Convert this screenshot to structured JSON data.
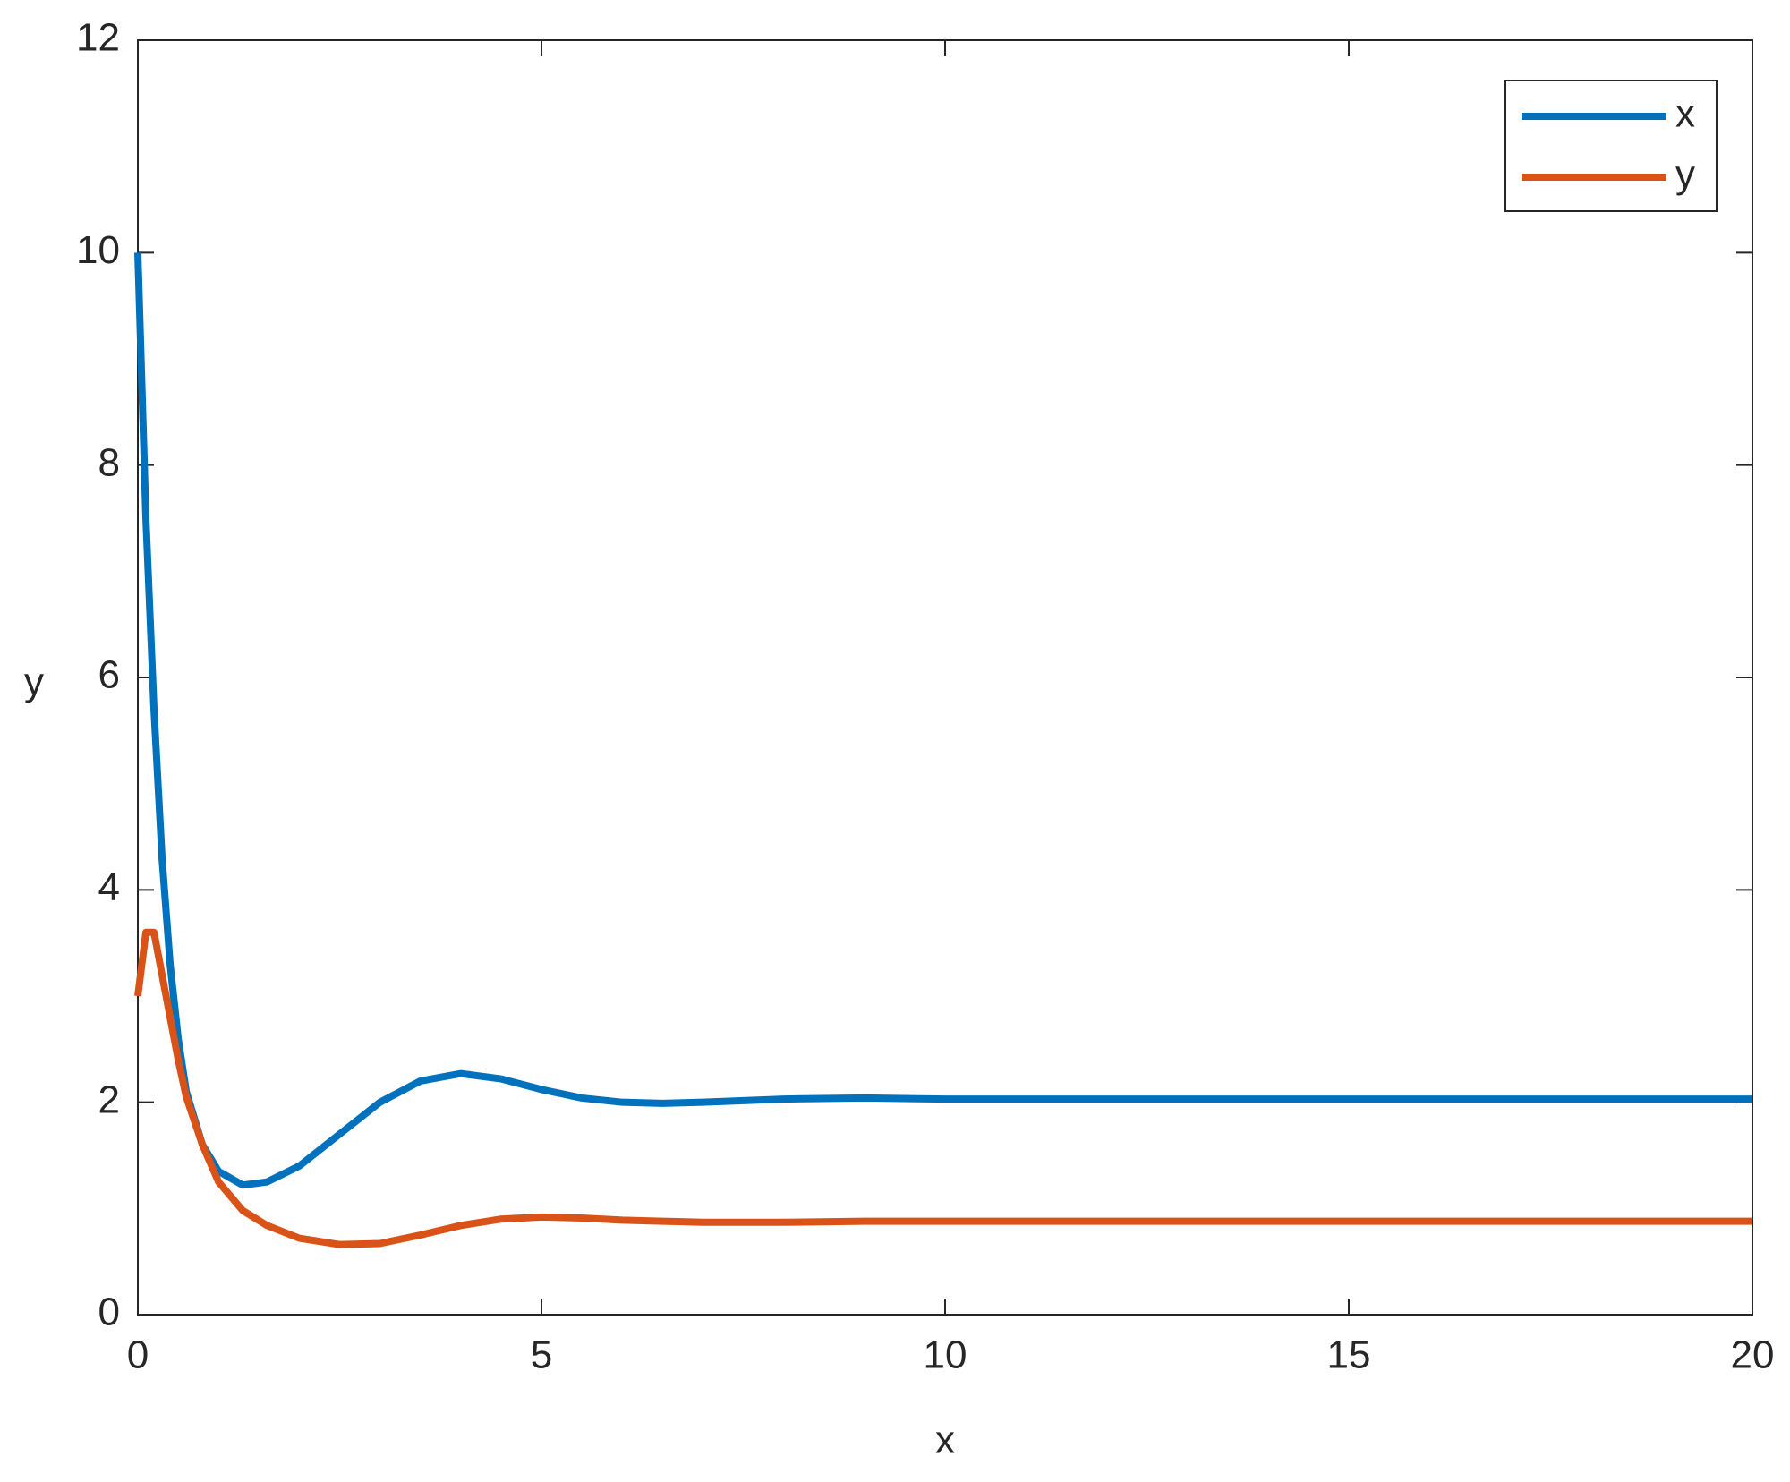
{
  "chart_data": {
    "type": "line",
    "xlabel": "x",
    "ylabel": "y",
    "x": [
      0,
      0.1,
      0.2,
      0.3,
      0.4,
      0.5,
      0.6,
      0.8,
      1.0,
      1.3,
      1.6,
      2,
      2.5,
      3,
      3.5,
      4,
      4.5,
      5,
      5.5,
      6,
      6.5,
      7,
      8,
      9,
      10,
      11,
      12,
      14,
      16,
      18,
      20
    ],
    "series": [
      {
        "name": "x",
        "color": "#0072bd",
        "values": [
          10,
          7.5,
          5.7,
          4.3,
          3.3,
          2.6,
          2.1,
          1.6,
          1.35,
          1.22,
          1.25,
          1.4,
          1.7,
          2.0,
          2.2,
          2.27,
          2.22,
          2.12,
          2.04,
          2.0,
          1.99,
          2.0,
          2.03,
          2.04,
          2.03,
          2.03,
          2.03,
          2.03,
          2.03,
          2.03,
          2.03
        ]
      },
      {
        "name": "y",
        "color": "#d95319",
        "values": [
          3.0,
          3.6,
          3.6,
          3.2,
          2.8,
          2.4,
          2.05,
          1.6,
          1.25,
          0.98,
          0.84,
          0.72,
          0.66,
          0.67,
          0.75,
          0.84,
          0.9,
          0.92,
          0.91,
          0.89,
          0.88,
          0.87,
          0.87,
          0.88,
          0.88,
          0.88,
          0.88,
          0.88,
          0.88,
          0.88,
          0.88
        ]
      }
    ],
    "xlim": [
      0,
      20
    ],
    "xticks": [
      0,
      5,
      10,
      15,
      20
    ],
    "ylim": [
      0,
      12
    ],
    "yticks": [
      0,
      2,
      4,
      6,
      8,
      10,
      12
    ],
    "grid": false,
    "legend": "northeast"
  }
}
